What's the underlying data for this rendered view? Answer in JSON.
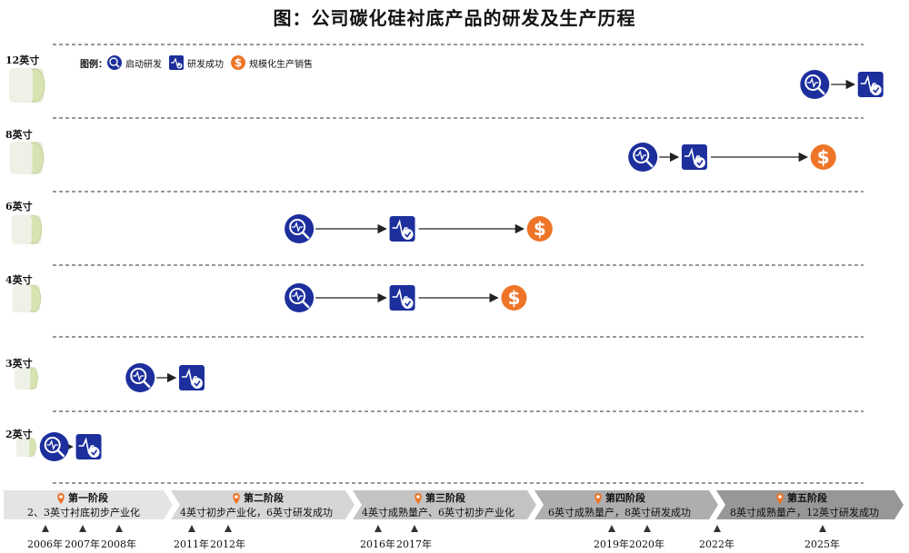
{
  "title": "图：公司碳化硅衬底产品的研发及生产历程",
  "legend": {
    "label": "图例：",
    "items": [
      {
        "label": "启动研发",
        "icon": "magnifier-pulse-icon"
      },
      {
        "label": "研发成功",
        "icon": "pulse-check-icon"
      },
      {
        "label": "规模化生产销售",
        "icon": "dollar-icon"
      }
    ]
  },
  "colors": {
    "blue": "#1c2f9c",
    "orange": "#ee7528",
    "grey": "#9a9a9a"
  },
  "rows": [
    {
      "label": "12英寸",
      "milestones": [
        {
          "type": "start",
          "year": 2023.8
        },
        {
          "type": "success",
          "year": 2025.1
        }
      ]
    },
    {
      "label": "8英寸",
      "milestones": [
        {
          "type": "start",
          "year": 2019.8
        },
        {
          "type": "success",
          "year": 2021.0
        },
        {
          "type": "mass",
          "year": 2024.0
        }
      ]
    },
    {
      "label": "6英寸",
      "milestones": [
        {
          "type": "start",
          "year": 2011.8
        },
        {
          "type": "success",
          "year": 2014.2
        },
        {
          "type": "mass",
          "year": 2017.4
        }
      ]
    },
    {
      "label": "4英寸",
      "milestones": [
        {
          "type": "start",
          "year": 2011.8
        },
        {
          "type": "success",
          "year": 2014.2
        },
        {
          "type": "mass",
          "year": 2016.8
        }
      ]
    },
    {
      "label": "3英寸",
      "milestones": [
        {
          "type": "start",
          "year": 2008.1
        },
        {
          "type": "success",
          "year": 2009.3
        }
      ]
    },
    {
      "label": "2英寸",
      "milestones": [
        {
          "type": "start",
          "year": 2006.1
        },
        {
          "type": "success",
          "year": 2006.9
        }
      ]
    }
  ],
  "stages": [
    {
      "title": "第一阶段",
      "desc": "2、3英寸衬底初步产业化"
    },
    {
      "title": "第二阶段",
      "desc": "4英寸初步产业化，6英寸研发成功"
    },
    {
      "title": "第三阶段",
      "desc": "4英寸成熟量产、6英寸初步产业化"
    },
    {
      "title": "第四阶段",
      "desc": "6英寸成熟量产，8英寸研发成功"
    },
    {
      "title": "第五阶段",
      "desc": "8英寸成熟量产，12英寸研发成功"
    }
  ],
  "years": [
    "2006年",
    "2007年",
    "2008年",
    "2011年",
    "2012年",
    "2016年",
    "2017年",
    "2019年",
    "2020年",
    "2022年",
    "2025年"
  ]
}
